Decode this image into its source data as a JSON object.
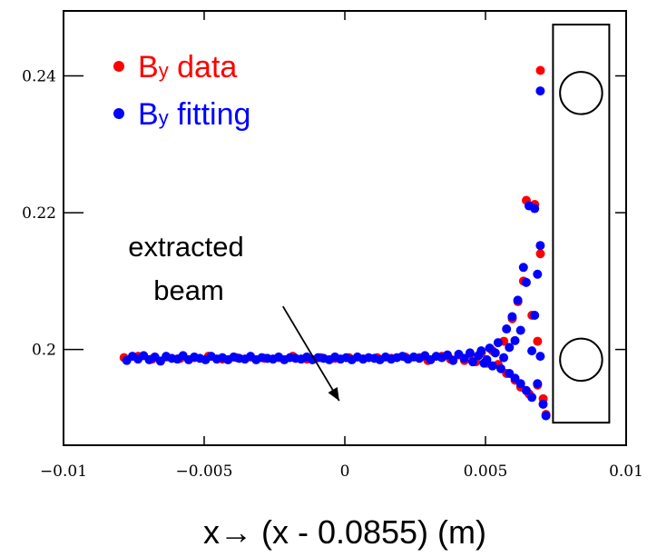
{
  "chart_data": {
    "type": "scatter",
    "xlim": [
      -0.01,
      0.01
    ],
    "ylim": [
      0.186,
      0.2495
    ],
    "grid": false,
    "legend_placement": "top-left",
    "xticks": [
      -0.01,
      -0.005,
      0,
      0.005,
      0.01
    ],
    "xtick_labels": [
      "−0.01",
      "−0.005",
      "0",
      "0.005",
      "0.01"
    ],
    "yticks": [
      0.2,
      0.22,
      0.24
    ],
    "ytick_labels": [
      "0.2",
      "0.22",
      "0.24"
    ],
    "xlabel": "x→ (x - 0.0855) (m)",
    "ylabel": "",
    "title": "",
    "annotation": {
      "lines": [
        "extracted",
        "beam"
      ],
      "arrow_from": [
        -0.0022,
        0.2063
      ],
      "arrow_to": [
        -0.0002,
        0.1925
      ]
    },
    "magnet_outline": {
      "rect_x": [
        0.0074,
        0.0094
      ],
      "rect_y": [
        0.1893,
        0.2475
      ],
      "circle_centers": [
        [
          0.0084,
          0.2375
        ],
        [
          0.0084,
          0.1985
        ]
      ],
      "circle_radius_x": 0.00075
    },
    "series": [
      {
        "name": "By data",
        "color": "#ff0000",
        "points": [
          [
            -0.0078,
            0.1988
          ],
          [
            -0.0073,
            0.199
          ],
          [
            -0.0068,
            0.1986
          ],
          [
            -0.0063,
            0.1989
          ],
          [
            -0.0058,
            0.1987
          ],
          [
            -0.0053,
            0.1988
          ],
          [
            -0.0048,
            0.199
          ],
          [
            -0.0043,
            0.1986
          ],
          [
            -0.0038,
            0.1988
          ],
          [
            -0.0033,
            0.1989
          ],
          [
            -0.0028,
            0.1987
          ],
          [
            -0.0023,
            0.1988
          ],
          [
            -0.0018,
            0.199
          ],
          [
            -0.0013,
            0.1986
          ],
          [
            -0.0008,
            0.1988
          ],
          [
            -0.0003,
            0.1987
          ],
          [
            0.0002,
            0.1988
          ],
          [
            0.0007,
            0.1986
          ],
          [
            0.0012,
            0.1988
          ],
          [
            0.0017,
            0.1987
          ],
          [
            0.0022,
            0.1989
          ],
          [
            0.0027,
            0.1988
          ],
          [
            0.003,
            0.1984
          ],
          [
            0.0035,
            0.199
          ],
          [
            0.0038,
            0.1986
          ],
          [
            0.0041,
            0.1992
          ],
          [
            0.0043,
            0.1984
          ],
          [
            0.0045,
            0.1993
          ],
          [
            0.0047,
            0.1982
          ],
          [
            0.0049,
            0.1995
          ],
          [
            0.0051,
            0.198
          ],
          [
            0.0053,
            0.1998
          ],
          [
            0.0055,
            0.1978
          ],
          [
            0.0057,
            0.2012
          ],
          [
            0.0058,
            0.1965
          ],
          [
            0.006,
            0.2045
          ],
          [
            0.0061,
            0.1955
          ],
          [
            0.0062,
            0.207
          ],
          [
            0.0063,
            0.1945
          ],
          [
            0.0064,
            0.21
          ],
          [
            0.0065,
            0.2218
          ],
          [
            0.0066,
            0.1935
          ],
          [
            0.0067,
            0.205
          ],
          [
            0.0068,
            0.2212
          ],
          [
            0.0069,
            0.1948
          ],
          [
            0.0069,
            0.2012
          ],
          [
            0.007,
            0.214
          ],
          [
            0.007,
            0.2408
          ],
          [
            0.0071,
            0.1928
          ],
          [
            0.0072,
            0.1905
          ]
        ]
      },
      {
        "name": "By fitting",
        "color": "#0000ff",
        "points": [
          [
            -0.0078,
            0.1984
          ],
          [
            -0.0076,
            0.199
          ],
          [
            -0.0074,
            0.1986
          ],
          [
            -0.0072,
            0.1991
          ],
          [
            -0.007,
            0.1985
          ],
          [
            -0.0068,
            0.1989
          ],
          [
            -0.0066,
            0.1983
          ],
          [
            -0.0064,
            0.199
          ],
          [
            -0.0062,
            0.1987
          ],
          [
            -0.006,
            0.1986
          ],
          [
            -0.0058,
            0.1991
          ],
          [
            -0.0056,
            0.1985
          ],
          [
            -0.0054,
            0.1989
          ],
          [
            -0.0052,
            0.1987
          ],
          [
            -0.005,
            0.1985
          ],
          [
            -0.0048,
            0.199
          ],
          [
            -0.0046,
            0.1986
          ],
          [
            -0.0044,
            0.1988
          ],
          [
            -0.0042,
            0.1985
          ],
          [
            -0.004,
            0.1989
          ],
          [
            -0.0038,
            0.1987
          ],
          [
            -0.0036,
            0.1986
          ],
          [
            -0.0034,
            0.199
          ],
          [
            -0.0032,
            0.1985
          ],
          [
            -0.003,
            0.1988
          ],
          [
            -0.0028,
            0.1987
          ],
          [
            -0.0026,
            0.1986
          ],
          [
            -0.0024,
            0.1989
          ],
          [
            -0.0022,
            0.1985
          ],
          [
            -0.002,
            0.1988
          ],
          [
            -0.0018,
            0.1987
          ],
          [
            -0.0016,
            0.1986
          ],
          [
            -0.0014,
            0.1989
          ],
          [
            -0.0012,
            0.1985
          ],
          [
            -0.001,
            0.1988
          ],
          [
            -0.0008,
            0.1987
          ],
          [
            -0.0006,
            0.1985
          ],
          [
            -0.0004,
            0.1989
          ],
          [
            -0.0002,
            0.1986
          ],
          [
            0.0,
            0.1988
          ],
          [
            0.0002,
            0.1985
          ],
          [
            0.0004,
            0.1989
          ],
          [
            0.0006,
            0.1986
          ],
          [
            0.0008,
            0.1988
          ],
          [
            0.001,
            0.1987
          ],
          [
            0.0012,
            0.1985
          ],
          [
            0.0014,
            0.1989
          ],
          [
            0.0016,
            0.1986
          ],
          [
            0.0018,
            0.1988
          ],
          [
            0.002,
            0.199
          ],
          [
            0.0022,
            0.1986
          ],
          [
            0.0024,
            0.1989
          ],
          [
            0.0026,
            0.1987
          ],
          [
            0.0028,
            0.1991
          ],
          [
            0.003,
            0.1985
          ],
          [
            0.0032,
            0.199
          ],
          [
            0.0034,
            0.1988
          ],
          [
            0.0036,
            0.1992
          ],
          [
            0.0038,
            0.1984
          ],
          [
            0.004,
            0.1993
          ],
          [
            0.0042,
            0.1987
          ],
          [
            0.0044,
            0.1995
          ],
          [
            0.0045,
            0.1982
          ],
          [
            0.0047,
            0.1991
          ],
          [
            0.0048,
            0.1998
          ],
          [
            0.0049,
            0.198
          ],
          [
            0.005,
            0.1985
          ],
          [
            0.0051,
            0.2002
          ],
          [
            0.0052,
            0.1976
          ],
          [
            0.0053,
            0.1995
          ],
          [
            0.0054,
            0.201
          ],
          [
            0.0055,
            0.1972
          ],
          [
            0.0056,
            0.1988
          ],
          [
            0.0057,
            0.203
          ],
          [
            0.0058,
            0.1965
          ],
          [
            0.0058,
            0.2003
          ],
          [
            0.0059,
            0.2048
          ],
          [
            0.006,
            0.1958
          ],
          [
            0.006,
            0.2013
          ],
          [
            0.0061,
            0.2072
          ],
          [
            0.0062,
            0.195
          ],
          [
            0.0062,
            0.2028
          ],
          [
            0.0063,
            0.212
          ],
          [
            0.0064,
            0.194
          ],
          [
            0.0064,
            0.2098
          ],
          [
            0.0065,
            0.221
          ],
          [
            0.0066,
            0.193
          ],
          [
            0.0066,
            0.1998
          ],
          [
            0.0067,
            0.205
          ],
          [
            0.0067,
            0.2206
          ],
          [
            0.0068,
            0.195
          ],
          [
            0.0068,
            0.211
          ],
          [
            0.0069,
            0.199
          ],
          [
            0.0069,
            0.2152
          ],
          [
            0.0069,
            0.2378
          ],
          [
            0.007,
            0.192
          ],
          [
            0.0071,
            0.1903
          ]
        ]
      }
    ]
  },
  "legend": {
    "items": [
      {
        "main": "B",
        "sub": "y",
        "rest": " data",
        "color": "#ff0000"
      },
      {
        "main": "B",
        "sub": "y",
        "rest": " fitting",
        "color": "#0000ff"
      }
    ]
  }
}
